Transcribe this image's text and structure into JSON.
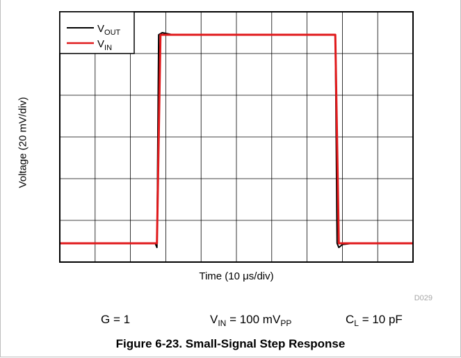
{
  "chart_data": {
    "type": "line",
    "xlabel_prefix": "Time (10 ",
    "xlabel_unit": "μs/div)",
    "ylabel": "Voltage (20 mV/div)",
    "x_divisions": 10,
    "y_divisions": 6,
    "x_unit_per_div": "10 μs",
    "y_unit_per_div": "20 mV",
    "grid": true,
    "legend_position": "top-left",
    "series": [
      {
        "name_base": "V",
        "name_sub": "OUT",
        "color": "#000000",
        "x": [
          0,
          2.7,
          2.75,
          2.8,
          2.9,
          3.2,
          7.8,
          7.85,
          7.9,
          8.0,
          8.3,
          10
        ],
        "y": [
          0.45,
          0.45,
          0.35,
          5.45,
          5.5,
          5.45,
          5.45,
          0.45,
          0.35,
          0.42,
          0.45,
          0.45
        ]
      },
      {
        "name_base": "V",
        "name_sub": "IN",
        "color": "#e0191b",
        "x": [
          0,
          2.75,
          2.85,
          7.8,
          7.9,
          10
        ],
        "y": [
          0.45,
          0.45,
          5.45,
          5.45,
          0.45,
          0.45
        ]
      }
    ],
    "code": "D029"
  },
  "conditions": {
    "gain": "G = 1",
    "vin_base": "V",
    "vin_sub": "IN",
    "vin_value": " = 100 mV",
    "vin_unit_sub": "PP",
    "cl_base": "C",
    "cl_sub": "L",
    "cl_value": " = 10 pF"
  },
  "caption": "Figure 6-23. Small-Signal Step Response",
  "colors": {
    "vout": "#000000",
    "vin": "#e0191b",
    "grid": "#000000"
  }
}
